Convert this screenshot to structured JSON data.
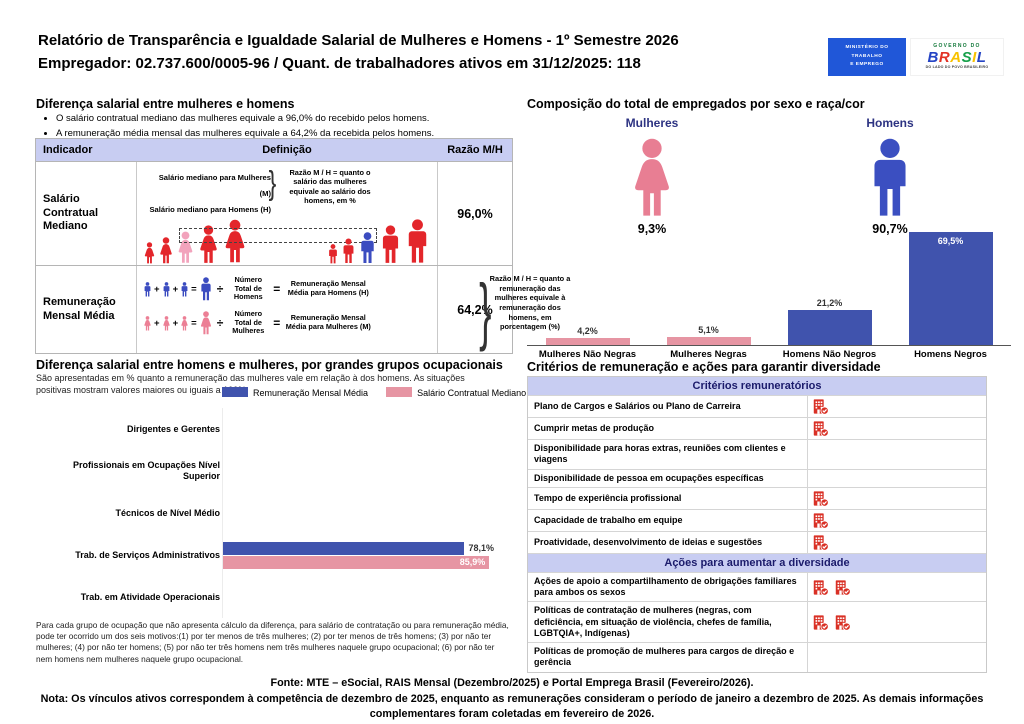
{
  "header": {
    "title_line1": "Relatório de Transparência e Igualdade Salarial de Mulheres e Homens - 1º Semestre 2026",
    "title_line2": "Empregador: 02.737.600/0005-96 / Quant. de trabalhadores ativos em 31/12/2025: 118",
    "mte_logo_line1": "MINISTÉRIO DO",
    "mte_logo_line2": "TRABALHO",
    "mte_logo_line3": "E EMPREGO",
    "gov_logo_top": "GOVERNO DO",
    "gov_logo_letters": [
      "B",
      "R",
      "A",
      "S",
      "I",
      "L"
    ],
    "gov_logo_tagline": "DO LADO DO POVO BRASILEIRO"
  },
  "salary_gap": {
    "title": "Diferença salarial entre mulheres e homens",
    "bullet1": "O salário contratual mediano das mulheres equivale a 96,0% do recebido pelos homens.",
    "bullet2": "A remuneração média mensal das mulheres equivale a 64,2% da recebida pelos homens.",
    "col_indicador": "Indicador",
    "col_definicao": "Definição",
    "col_razao": "Razão M/H",
    "row1": {
      "indicator": "Salário Contratual Mediano",
      "line_women": "Salário mediano para Mulheres (M)",
      "line_men": "Salário mediano para Homens (H)",
      "note": "Razão M / H = quanto o salário das mulheres equivale ao salário dos homens, em %",
      "ratio": "96,0%"
    },
    "row2": {
      "indicator": "Remuneração Mensal Média",
      "plus": "+",
      "equals": "=",
      "divide": "÷",
      "men_divisor": "Número Total de Homens",
      "men_result": "Remuneração Mensal Média para Homens (H)",
      "women_divisor": "Número Total de Mulheres",
      "women_result": "Remuneração Mensal Média para Mulheres (M)",
      "note": "Razão M / H = quanto a remuneração das mulheres equivale à remuneração dos homens, em porcentagem (%)",
      "ratio": "64,2%"
    }
  },
  "occupational": {
    "title": "Diferença salarial entre homens e mulheres, por grandes grupos ocupacionais",
    "subtitle": "São apresentadas em % quanto a remuneração das mulheres vale em relação à dos homens. As situações positivas mostram valores maiores ou iguais a 100%",
    "legend_blue": "Remuneração Mensal Média",
    "legend_pink": "Salário Contratual Mediano",
    "footnote": "Para cada grupo de ocupação que não apresenta cálculo da diferença, para salário de contratação ou para remuneração média, pode ter ocorrido um dos seis motivos:(1) por ter menos de três mulheres; (2) por ter menos de três homens; (3) por não ter mulheres; (4) por não ter homens; (5) por não ter três homens nem três mulheres naquele grupo ocupacional; (6) por não ter nem homens nem mulheres naquele grupo ocupacional.",
    "chart_data": {
      "type": "bar",
      "orientation": "horizontal",
      "categories": [
        "Dirigentes e Gerentes",
        "Profissionais em Ocupações Nível Superior",
        "Técnicos de Nível Médio",
        "Trab. de Serviços Administrativos",
        "Trab. em Atividade Operacionais"
      ],
      "series": [
        {
          "name": "Remuneração Mensal Média",
          "color": "#4053ad",
          "values": [
            null,
            null,
            null,
            78.1,
            null
          ]
        },
        {
          "name": "Salário Contratual Mediano",
          "color": "#e695a3",
          "values": [
            null,
            null,
            null,
            85.9,
            null
          ]
        }
      ],
      "value_labels": {
        "blue": "78,1%",
        "pink": "85,9%"
      },
      "xlim": [
        0,
        90
      ],
      "legend_position": "top"
    }
  },
  "composition": {
    "title": "Composição do total de empregados por sexo e raça/cor",
    "female_label": "Mulheres",
    "female_pct": "9,3%",
    "male_label": "Homens",
    "male_pct": "90,7%",
    "chart_data": {
      "type": "bar",
      "categories": [
        "Mulheres Não Negras",
        "Mulheres Negras",
        "Homens Não Negros",
        "Homens Negros"
      ],
      "values": [
        4.2,
        5.1,
        21.2,
        69.5
      ],
      "labels": [
        "4,2%",
        "5,1%",
        "21,2%",
        "69,5%"
      ],
      "colors": [
        "#e695a3",
        "#e695a3",
        "#4053ad",
        "#4053ad"
      ],
      "label_inside": [
        false,
        false,
        false,
        true
      ],
      "ylim": [
        0,
        70
      ],
      "grid": false
    }
  },
  "criteria": {
    "title": "Critérios de remuneração e ações para garantir diversidade",
    "header1": "Critérios remuneratórios",
    "rows1": [
      {
        "label": "Plano de Cargos e Salários ou Plano de Carreira",
        "icons": 1
      },
      {
        "label": "Cumprir metas de produção",
        "icons": 1
      },
      {
        "label": "Disponibilidade para horas extras, reuniões com clientes e viagens",
        "icons": 0
      },
      {
        "label": "Disponibilidade de pessoa em ocupações específicas",
        "icons": 0
      },
      {
        "label": "Tempo de experiência profissional",
        "icons": 1
      },
      {
        "label": "Capacidade de trabalho em equipe",
        "icons": 1
      },
      {
        "label": "Proatividade, desenvolvimento de ideias e sugestões",
        "icons": 1
      }
    ],
    "header2": "Ações para aumentar a diversidade",
    "rows2": [
      {
        "label": "Ações de apoio a compartilhamento de obrigações familiares para ambos os sexos",
        "icons": 2
      },
      {
        "label": "Políticas de contratação de mulheres (negras, com deficiência, em situação de violência, chefes de família, LGBTQIA+, Indígenas)",
        "icons": 2
      },
      {
        "label": "Políticas de promoção de mulheres para cargos de direção e gerência",
        "icons": 0
      }
    ]
  },
  "footer": {
    "fonte": "Fonte: MTE – eSocial, RAIS Mensal (Dezembro/2025) e Portal Emprega Brasil (Fevereiro/2026).",
    "nota": "Nota: Os vínculos ativos correspondem à competência de dezembro de 2025, enquanto as remunerações consideram o período de janeiro a dezembro de 2025. As demais informações complementares foram coletadas em fevereiro de 2026."
  },
  "colors": {
    "blue_bar": "#4053ad",
    "pink_bar": "#e695a3",
    "lavender_header": "#c8cdf2",
    "red_icon": "#d93025",
    "navy_label": "#2d3382",
    "figure_red": "#e3262b",
    "figure_light_pink": "#f2a3bc",
    "figure_blue": "#3b4cc0",
    "mte_logo_blue": "#2057d8"
  }
}
